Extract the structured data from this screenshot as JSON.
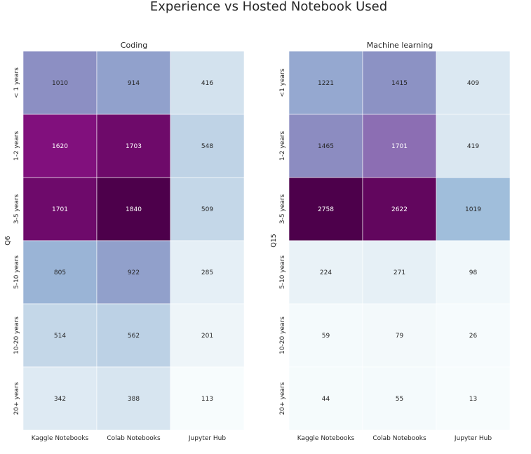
{
  "title": "Experience vs Hosted Notebook Used",
  "chart_data": [
    {
      "type": "heatmap",
      "title": "Coding",
      "ylabel": "Q6",
      "xlabel": "",
      "x": [
        "Kaggle Notebooks",
        "Colab Notebooks",
        "Jupyter Hub"
      ],
      "y": [
        "< 1 years",
        "1-2 years",
        "3-5 years",
        "5-10 years",
        "10-20 years",
        "20+ years"
      ],
      "values": [
        [
          1010,
          914,
          416
        ],
        [
          1620,
          1703,
          548
        ],
        [
          1701,
          1840,
          509
        ],
        [
          805,
          922,
          285
        ],
        [
          514,
          562,
          201
        ],
        [
          342,
          388,
          113
        ]
      ],
      "colormap": "BuPu",
      "colorbar": false
    },
    {
      "type": "heatmap",
      "title": "Machine learning",
      "ylabel": "Q15",
      "xlabel": "",
      "x": [
        "Kaggle Notebooks",
        "Colab Notebooks",
        "Jupyter Hub"
      ],
      "y": [
        "<1 years",
        "1-2 years",
        "3-5 years",
        "5-10 years",
        "10-20 years",
        "20+ years"
      ],
      "values": [
        [
          1221,
          1415,
          409
        ],
        [
          1465,
          1701,
          419
        ],
        [
          2758,
          2622,
          1019
        ],
        [
          224,
          271,
          98
        ],
        [
          59,
          79,
          26
        ],
        [
          44,
          55,
          13
        ]
      ],
      "colormap": "BuPu",
      "colorbar": false
    }
  ]
}
